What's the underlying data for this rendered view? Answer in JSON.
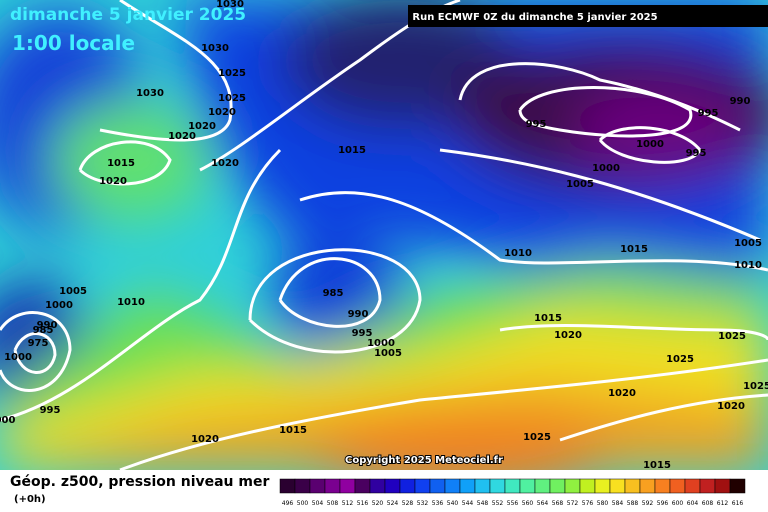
{
  "header": {
    "date": "dimanche 5 janvier 2025",
    "time": "1:00 locale",
    "run": "Run ECMWF 0Z du dimanche 5 janvier 2025"
  },
  "copyright": "Copyright 2025 Meteociel.fr",
  "footer": {
    "title": "Géop. z500, pression niveau mer",
    "step": "(+0h)"
  },
  "isobar_labels": [
    "1030",
    "1030",
    "1025",
    "1030",
    "1025",
    "1020",
    "1020",
    "1020",
    "1015",
    "1020",
    "1020",
    "1015",
    "995",
    "1000",
    "995",
    "990",
    "995",
    "1000",
    "1005",
    "1005",
    "1010",
    "1010",
    "1015",
    "1005",
    "1010",
    "1000",
    "985",
    "990",
    "995",
    "1000",
    "1005",
    "990",
    "985",
    "975",
    "1000",
    "995",
    "000",
    "1020",
    "1015",
    "1020",
    "1025",
    "1025",
    "1025",
    "1020",
    "1020",
    "1025",
    "1015",
    "1015"
  ],
  "colorbar": [
    496,
    500,
    504,
    508,
    512,
    516,
    520,
    524,
    528,
    532,
    536,
    540,
    544,
    548,
    552,
    556,
    560,
    564,
    568,
    572,
    576,
    580,
    584,
    588,
    592,
    596,
    600,
    604,
    608,
    612,
    616
  ]
}
